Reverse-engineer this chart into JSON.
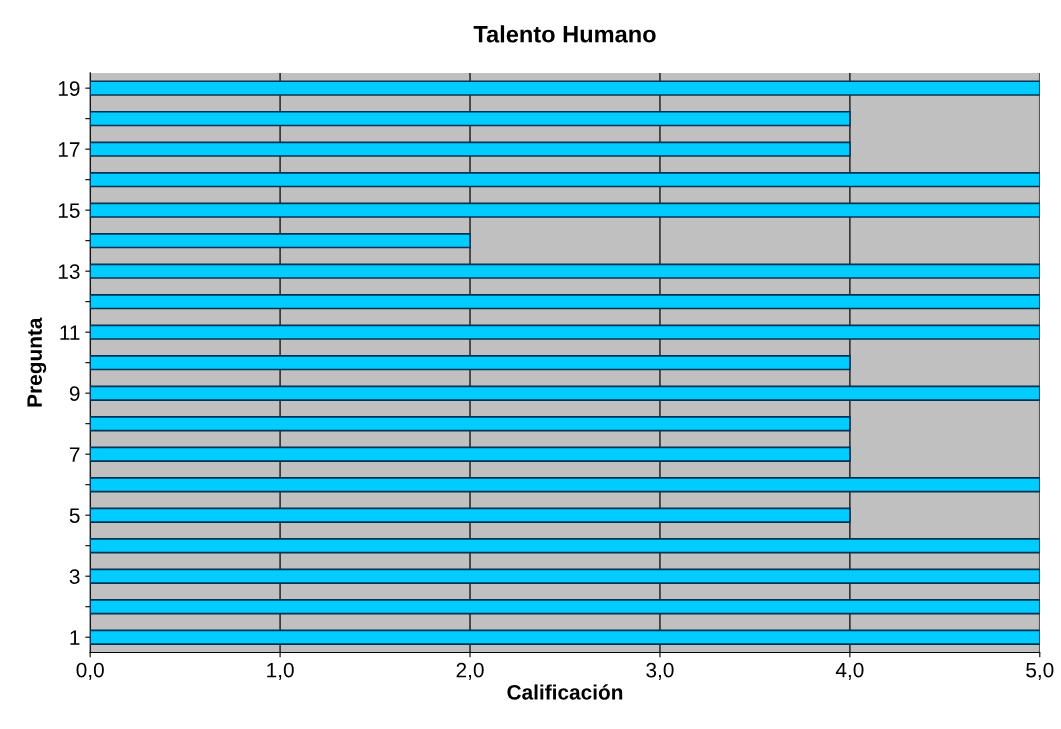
{
  "chart_data": {
    "type": "bar",
    "orientation": "horizontal",
    "title": "Talento Humano",
    "xlabel": "Calificación",
    "ylabel": "Pregunta",
    "categories": [
      "19",
      null,
      "17",
      null,
      "15",
      null,
      "13",
      null,
      "11",
      null,
      "9",
      null,
      "7",
      null,
      "5",
      null,
      "3",
      null,
      "1"
    ],
    "values": [
      5,
      4,
      4,
      5,
      5,
      2,
      5,
      5,
      5,
      4,
      5,
      4,
      4,
      5,
      4,
      5,
      5,
      5,
      5
    ],
    "color": "#00ccff",
    "xlim": [
      0,
      5
    ],
    "xticks": [
      {
        "value": 0,
        "label": "0,0"
      },
      {
        "value": 1,
        "label": "1,0"
      },
      {
        "value": 2,
        "label": "2,0"
      },
      {
        "value": 3,
        "label": "3,0"
      },
      {
        "value": 4,
        "label": "4,0"
      },
      {
        "value": 5,
        "label": "5,0"
      }
    ],
    "grid": "x",
    "legend": false
  }
}
